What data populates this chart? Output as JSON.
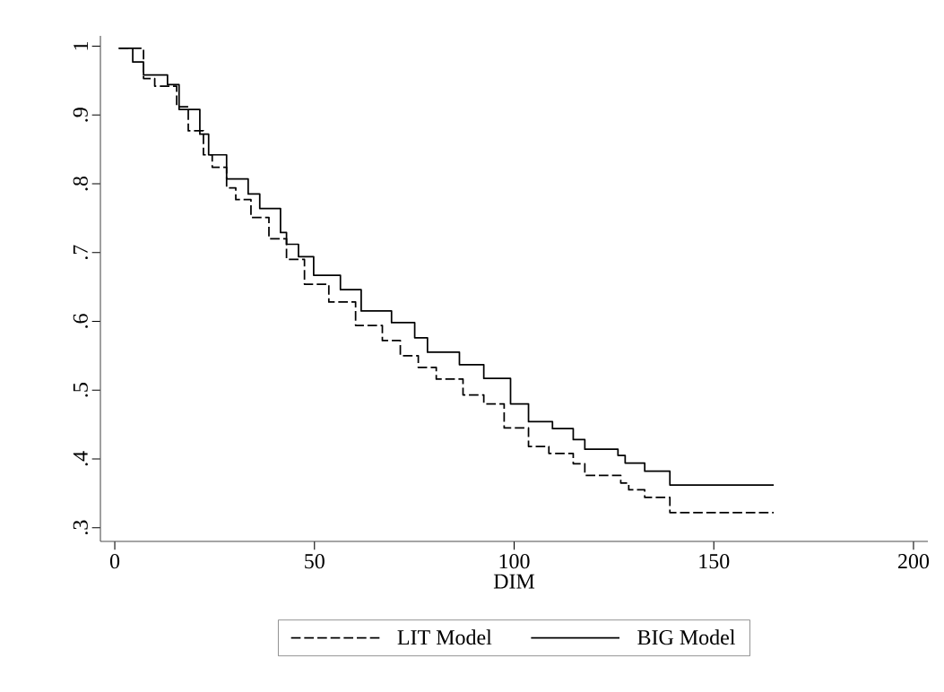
{
  "chart_data": {
    "type": "step",
    "xlabel": "DIM",
    "xlim": [
      -3.6,
      203.6
    ],
    "ylim": [
      0.28,
      1.015
    ],
    "xticks": [
      0,
      50,
      100,
      150,
      200
    ],
    "yticks": [
      {
        "value": 0.3,
        "label": ".3"
      },
      {
        "value": 0.4,
        "label": ".4"
      },
      {
        "value": 0.5,
        "label": ".5"
      },
      {
        "value": 0.6,
        "label": ".6"
      },
      {
        "value": 0.7,
        "label": ".7"
      },
      {
        "value": 0.8,
        "label": ".8"
      },
      {
        "value": 0.9,
        "label": ".9"
      },
      {
        "value": 1,
        "label": "1"
      }
    ],
    "legend": "bottom",
    "series": [
      {
        "name": "LIT Model",
        "color": "#000000",
        "line_style": "dashed",
        "x": [
          1,
          7.2,
          10,
          15.5,
          18.4,
          22.2,
          24.4,
          28,
          30.3,
          34.1,
          38.6,
          43,
          47.5,
          53.6,
          60.3,
          67,
          71.5,
          76,
          80.5,
          87.2,
          92.4,
          97.5,
          103.6,
          108.7,
          114.8,
          117.7,
          126.7,
          128.7,
          132.7,
          139,
          165
        ],
        "values": [
          0.997,
          0.953,
          0.942,
          0.912,
          0.877,
          0.842,
          0.824,
          0.794,
          0.777,
          0.751,
          0.72,
          0.69,
          0.654,
          0.628,
          0.594,
          0.572,
          0.55,
          0.533,
          0.516,
          0.493,
          0.48,
          0.445,
          0.418,
          0.408,
          0.393,
          0.376,
          0.365,
          0.355,
          0.344,
          0.322,
          0.322
        ]
      },
      {
        "name": "BIG Model",
        "color": "#000000",
        "line_style": "solid",
        "x": [
          1,
          4.5,
          7.2,
          13.2,
          16.1,
          21.3,
          23.5,
          28,
          33.4,
          36.3,
          41.5,
          43,
          46,
          49.8,
          56.5,
          61.7,
          69.3,
          75.1,
          78.3,
          86.3,
          92.4,
          99.1,
          103.6,
          109.6,
          114.8,
          117.7,
          126,
          127.8,
          132.7,
          139,
          165
        ],
        "values": [
          0.997,
          0.977,
          0.958,
          0.944,
          0.908,
          0.872,
          0.842,
          0.807,
          0.785,
          0.764,
          0.729,
          0.712,
          0.694,
          0.667,
          0.646,
          0.615,
          0.598,
          0.576,
          0.555,
          0.537,
          0.517,
          0.48,
          0.454,
          0.444,
          0.428,
          0.414,
          0.405,
          0.394,
          0.382,
          0.362,
          0.362
        ]
      }
    ]
  }
}
